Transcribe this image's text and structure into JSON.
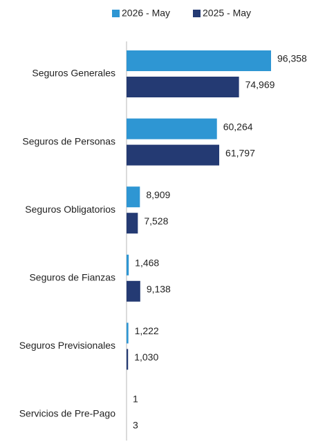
{
  "chart_data": {
    "type": "bar",
    "orientation": "horizontal",
    "categories": [
      "Seguros Generales",
      "Seguros de Personas",
      "Seguros Obligatorios",
      "Seguros de Fianzas",
      "Seguros Previsionales",
      "Servicios de Pre-Pago"
    ],
    "series": [
      {
        "name": "2026 - May",
        "color": "#2e96d3",
        "values": [
          96358,
          60264,
          8909,
          1468,
          1222,
          1
        ],
        "value_labels": [
          "96,358",
          "60,264",
          "8,909",
          "1,468",
          "1,222",
          "1"
        ]
      },
      {
        "name": "2025 - May",
        "color": "#243a73",
        "values": [
          74969,
          61797,
          7528,
          9138,
          1030,
          3
        ],
        "value_labels": [
          "74,969",
          "61,797",
          "7,528",
          "9,138",
          "1,030",
          "3"
        ]
      }
    ],
    "legend": "top"
  }
}
